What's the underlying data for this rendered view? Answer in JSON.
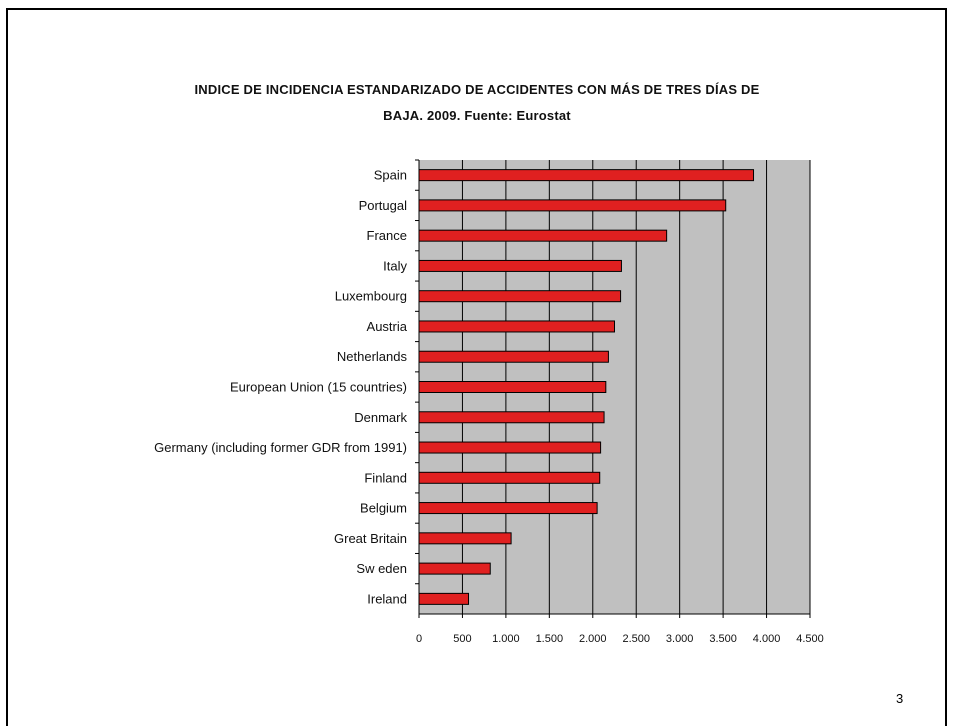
{
  "chart_data": {
    "type": "bar",
    "orientation": "horizontal",
    "title": "INDICE DE INCIDENCIA ESTANDARIZADO DE ACCIDENTES CON MÁS DE TRES DÍAS DE",
    "subtitle": "BAJA. 2009. Fuente: Eurostat",
    "categories": [
      "Spain",
      "Portugal",
      "France",
      "Italy",
      "Luxembourg",
      "Austria",
      "Netherlands",
      "European Union (15 countries)",
      "Denmark",
      "Germany (including  former GDR from 1991)",
      "Finland",
      "Belgium",
      "Great Britain",
      "Sw eden",
      "Ireland"
    ],
    "values": [
      3850,
      3530,
      2850,
      2330,
      2320,
      2250,
      2180,
      2150,
      2130,
      2090,
      2080,
      2050,
      1060,
      820,
      570
    ],
    "xlim": [
      0,
      4500
    ],
    "xticks": [
      0,
      500,
      1000,
      1500,
      2000,
      2500,
      3000,
      3500,
      4000,
      4500
    ],
    "xtick_labels": [
      "0",
      "500",
      "1.000",
      "1.500",
      "2.000",
      "2.500",
      "3.000",
      "3.500",
      "4.000",
      "4.500"
    ],
    "xlabel": "",
    "ylabel": "",
    "grid": "vertical",
    "legend": "none",
    "colors": {
      "bar": "#e02020",
      "bar_border": "#000000",
      "plot_background": "#c0c0c0",
      "gridline": "#000000"
    }
  },
  "page_number": "3"
}
